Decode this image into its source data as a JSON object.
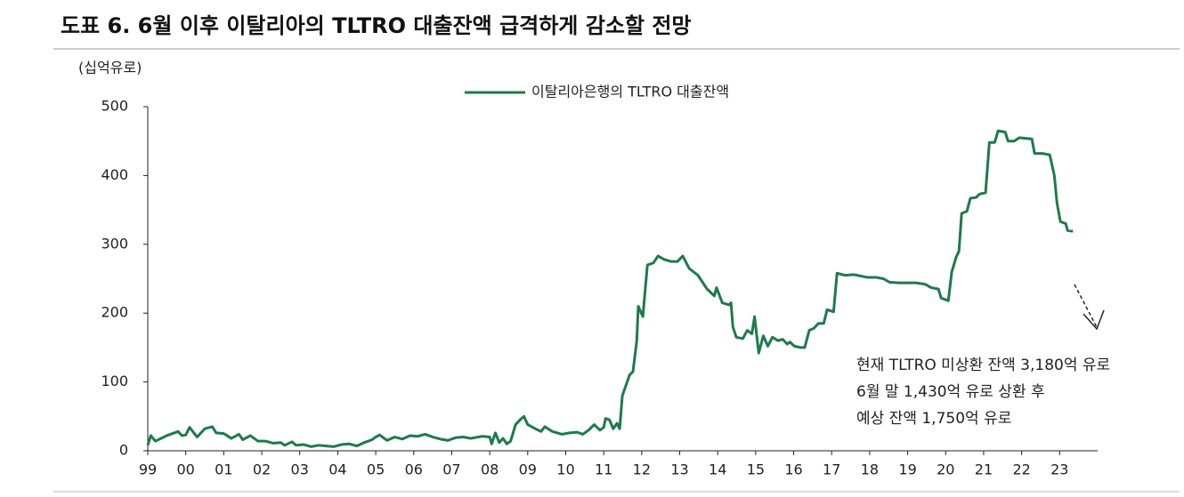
{
  "chart_data": {
    "type": "line",
    "title": "도표 6. 6월 이후 이탈리아의 TLTRO 대출잔액 급격하게 감소할 전망",
    "y_label": "(십억유로)",
    "annotation": [
      "현재 TLTRO 미상환 잔액 3,180억 유로",
      "6월 말 1,430억 유로 상환 후",
      "예상 잔액 1,750억 유로"
    ],
    "xlim": [
      1999,
      2024
    ],
    "xticks": [
      {
        "value": 1999,
        "label": "99"
      },
      {
        "value": 2000,
        "label": "00"
      },
      {
        "value": 2001,
        "label": "01"
      },
      {
        "value": 2002,
        "label": "02"
      },
      {
        "value": 2003,
        "label": "03"
      },
      {
        "value": 2004,
        "label": "04"
      },
      {
        "value": 2005,
        "label": "05"
      },
      {
        "value": 2006,
        "label": "06"
      },
      {
        "value": 2007,
        "label": "07"
      },
      {
        "value": 2008,
        "label": "08"
      },
      {
        "value": 2009,
        "label": "09"
      },
      {
        "value": 2010,
        "label": "10"
      },
      {
        "value": 2011,
        "label": "11"
      },
      {
        "value": 2012,
        "label": "12"
      },
      {
        "value": 2013,
        "label": "13"
      },
      {
        "value": 2014,
        "label": "14"
      },
      {
        "value": 2015,
        "label": "15"
      },
      {
        "value": 2016,
        "label": "16"
      },
      {
        "value": 2017,
        "label": "17"
      },
      {
        "value": 2018,
        "label": "18"
      },
      {
        "value": 2019,
        "label": "19"
      },
      {
        "value": 2020,
        "label": "20"
      },
      {
        "value": 2021,
        "label": "21"
      },
      {
        "value": 2022,
        "label": "22"
      },
      {
        "value": 2023,
        "label": "23"
      }
    ],
    "ylim": [
      0,
      500
    ],
    "yticks": [
      0,
      100,
      200,
      300,
      400,
      500
    ],
    "x": [
      1999.0,
      1999.08,
      1999.2,
      1999.5,
      1999.8,
      1999.9,
      2000.0,
      2000.1,
      2000.3,
      2000.5,
      2000.7,
      2000.8,
      2001.0,
      2001.2,
      2001.4,
      2001.5,
      2001.7,
      2001.9,
      2002.1,
      2002.3,
      2002.5,
      2002.6,
      2002.8,
      2002.9,
      2003.1,
      2003.3,
      2003.5,
      2003.7,
      2003.9,
      2004.1,
      2004.3,
      2004.5,
      2004.7,
      2004.9,
      2005.0,
      2005.1,
      2005.3,
      2005.5,
      2005.7,
      2005.9,
      2006.1,
      2006.3,
      2006.5,
      2006.7,
      2006.9,
      2007.1,
      2007.3,
      2007.5,
      2007.8,
      2008.0,
      2008.05,
      2008.15,
      2008.25,
      2008.35,
      2008.45,
      2008.55,
      2008.68,
      2008.8,
      2008.9,
      2009.0,
      2009.2,
      2009.35,
      2009.45,
      2009.65,
      2009.9,
      2010.1,
      2010.3,
      2010.45,
      2010.6,
      2010.75,
      2010.9,
      2011.0,
      2011.05,
      2011.15,
      2011.25,
      2011.35,
      2011.42,
      2011.49,
      2011.68,
      2011.77,
      2011.87,
      2011.91,
      2012.03,
      2012.15,
      2012.31,
      2012.43,
      2012.59,
      2012.78,
      2012.94,
      2013.08,
      2013.25,
      2013.48,
      2013.72,
      2013.91,
      2013.97,
      2014.12,
      2014.3,
      2014.35,
      2014.4,
      2014.49,
      2014.66,
      2014.78,
      2014.9,
      2014.97,
      2015.08,
      2015.2,
      2015.32,
      2015.44,
      2015.59,
      2015.71,
      2015.83,
      2015.9,
      2016.02,
      2016.18,
      2016.29,
      2016.41,
      2016.53,
      2016.65,
      2016.79,
      2016.88,
      2017.05,
      2017.14,
      2017.35,
      2017.58,
      2017.94,
      2018.17,
      2018.36,
      2018.52,
      2018.76,
      2019.22,
      2019.46,
      2019.62,
      2019.81,
      2019.88,
      2020.07,
      2020.16,
      2020.28,
      2020.35,
      2020.42,
      2020.56,
      2020.65,
      2020.8,
      2020.89,
      2021.05,
      2021.15,
      2021.29,
      2021.38,
      2021.57,
      2021.64,
      2021.8,
      2021.94,
      2022.27,
      2022.34,
      2022.55,
      2022.74,
      2022.86,
      2022.93,
      2023.02,
      2023.16,
      2023.21,
      2023.35
    ],
    "series": [
      {
        "name": "이탈리아은행의 TLTRO 대출잔액",
        "color": "#1e7a4a",
        "values": [
          8,
          22,
          14,
          22,
          28,
          22,
          23,
          34,
          20,
          32,
          35,
          26,
          25,
          18,
          24,
          16,
          22,
          14,
          14,
          11,
          12,
          8,
          13,
          8,
          9,
          6,
          8,
          7,
          6,
          9,
          10,
          7,
          12,
          16,
          20,
          23,
          15,
          20,
          17,
          22,
          21,
          24,
          20,
          17,
          15,
          19,
          20,
          18,
          21,
          20,
          10,
          26,
          12,
          18,
          10,
          14,
          38,
          45,
          50,
          38,
          32,
          28,
          35,
          28,
          24,
          26,
          27,
          24,
          30,
          38,
          30,
          34,
          47,
          45,
          32,
          40,
          32,
          80,
          110,
          115,
          160,
          210,
          195,
          270,
          273,
          283,
          278,
          275,
          275,
          283,
          265,
          255,
          235,
          225,
          237,
          215,
          212,
          215,
          180,
          165,
          163,
          175,
          170,
          195,
          142,
          167,
          152,
          165,
          160,
          162,
          155,
          158,
          152,
          150,
          150,
          175,
          178,
          185,
          185,
          205,
          202,
          258,
          255,
          256,
          252,
          252,
          250,
          245,
          244,
          244,
          242,
          237,
          235,
          222,
          218,
          260,
          282,
          290,
          345,
          348,
          367,
          368,
          373,
          375,
          448,
          448,
          465,
          463,
          450,
          450,
          455,
          453,
          432,
          432,
          430,
          400,
          360,
          333,
          330,
          320,
          319
        ]
      }
    ]
  }
}
